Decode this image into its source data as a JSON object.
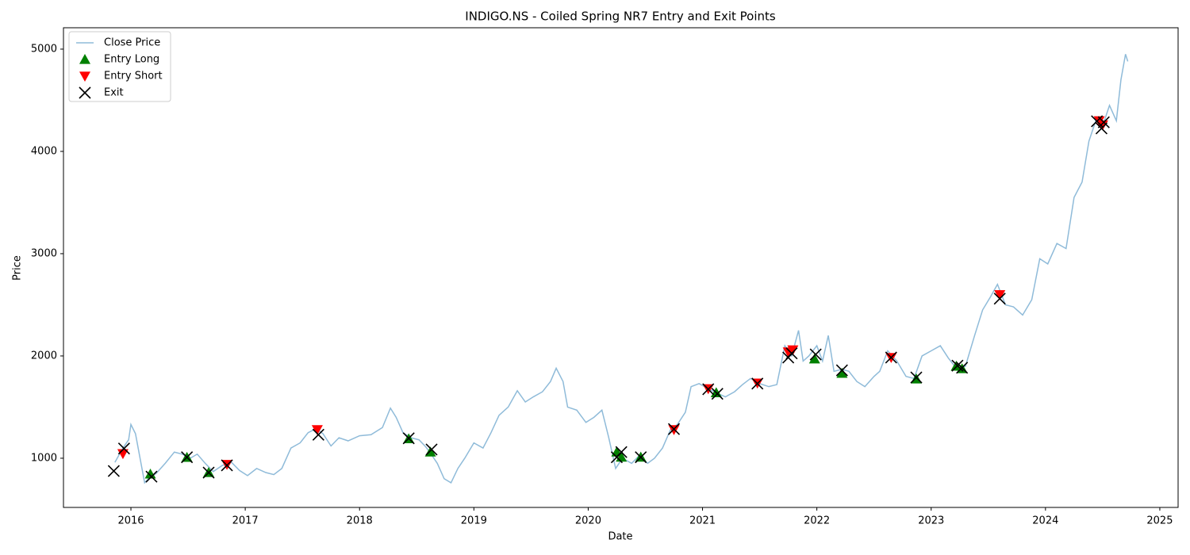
{
  "chart_data": {
    "type": "line",
    "title": "INDIGO.NS - Coiled Spring NR7 Entry and Exit Points",
    "x_label": "Date",
    "y_label": "Price",
    "xlim": [
      2015.41,
      2025.16
    ],
    "xticks": [
      2016,
      2017,
      2018,
      2019,
      2020,
      2021,
      2022,
      2023,
      2024,
      2025
    ],
    "ylim": [
      519,
      5209
    ],
    "yticks": [
      1000,
      2000,
      3000,
      4000,
      5000
    ],
    "legend": "upper left",
    "series": [
      {
        "name": "Close Price",
        "marker": "line",
        "color": "#1f77b4",
        "alpha": 0.5,
        "x": [
          2015.86,
          2015.93,
          2015.98,
          2016.0,
          2016.04,
          2016.08,
          2016.12,
          2016.17,
          2016.22,
          2016.3,
          2016.38,
          2016.45,
          2016.52,
          2016.58,
          2016.65,
          2016.72,
          2016.8,
          2016.88,
          2016.95,
          2017.02,
          2017.1,
          2017.18,
          2017.25,
          2017.32,
          2017.4,
          2017.48,
          2017.55,
          2017.62,
          2017.68,
          2017.75,
          2017.82,
          2017.9,
          2018.0,
          2018.1,
          2018.2,
          2018.27,
          2018.32,
          2018.38,
          2018.45,
          2018.52,
          2018.58,
          2018.62,
          2018.68,
          2018.74,
          2018.8,
          2018.86,
          2018.92,
          2019.0,
          2019.08,
          2019.15,
          2019.22,
          2019.3,
          2019.38,
          2019.45,
          2019.52,
          2019.6,
          2019.67,
          2019.72,
          2019.78,
          2019.82,
          2019.9,
          2019.98,
          2020.05,
          2020.12,
          2020.18,
          2020.24,
          2020.3,
          2020.38,
          2020.45,
          2020.52,
          2020.58,
          2020.65,
          2020.72,
          2020.78,
          2020.85,
          2020.9,
          2020.97,
          2021.05,
          2021.12,
          2021.2,
          2021.28,
          2021.35,
          2021.42,
          2021.5,
          2021.58,
          2021.65,
          2021.72,
          2021.78,
          2021.84,
          2021.88,
          2021.93,
          2022.0,
          2022.05,
          2022.1,
          2022.15,
          2022.22,
          2022.28,
          2022.35,
          2022.42,
          2022.5,
          2022.55,
          2022.62,
          2022.7,
          2022.78,
          2022.85,
          2022.92,
          2023.0,
          2023.08,
          2023.15,
          2023.22,
          2023.3,
          2023.38,
          2023.45,
          2023.52,
          2023.58,
          2023.65,
          2023.72,
          2023.8,
          2023.88,
          2023.95,
          2024.02,
          2024.1,
          2024.18,
          2024.25,
          2024.32,
          2024.38,
          2024.44,
          2024.5,
          2024.56,
          2024.62,
          2024.66,
          2024.7,
          2024.72
        ],
        "values": [
          960,
          1100,
          1180,
          1330,
          1240,
          1000,
          760,
          820,
          850,
          950,
          1060,
          1040,
          1000,
          1040,
          950,
          870,
          930,
          960,
          880,
          830,
          900,
          860,
          840,
          900,
          1100,
          1150,
          1250,
          1290,
          1240,
          1120,
          1200,
          1170,
          1220,
          1230,
          1300,
          1490,
          1400,
          1250,
          1200,
          1180,
          1110,
          1050,
          950,
          800,
          760,
          900,
          1000,
          1150,
          1100,
          1250,
          1420,
          1500,
          1660,
          1550,
          1600,
          1650,
          1750,
          1880,
          1750,
          1500,
          1470,
          1350,
          1400,
          1470,
          1200,
          900,
          1000,
          950,
          1030,
          950,
          1000,
          1100,
          1280,
          1330,
          1450,
          1700,
          1730,
          1680,
          1640,
          1600,
          1650,
          1720,
          1780,
          1730,
          1700,
          1720,
          2100,
          2000,
          2250,
          1950,
          2000,
          2100,
          1950,
          2200,
          1850,
          1870,
          1850,
          1750,
          1700,
          1800,
          1850,
          2050,
          1950,
          1800,
          1780,
          2000,
          2050,
          2100,
          1980,
          1880,
          1900,
          2200,
          2450,
          2580,
          2700,
          2500,
          2480,
          2400,
          2550,
          2950,
          2900,
          3100,
          3050,
          3550,
          3700,
          4100,
          4300,
          4250,
          4450,
          4300,
          4700,
          4950,
          4880
        ]
      },
      {
        "name": "Entry Long",
        "marker": "triangle-up",
        "color": "#008000",
        "x": [
          2016.17,
          2016.49,
          2016.68,
          2018.43,
          2018.62,
          2020.25,
          2020.29,
          2020.46,
          2021.12,
          2021.98,
          2022.22,
          2022.87,
          2023.22,
          2023.27
        ],
        "values": [
          845,
          1008,
          860,
          1190,
          1060,
          1060,
          1010,
          1010,
          1640,
          1970,
          1830,
          1775,
          1900,
          1875
        ]
      },
      {
        "name": "Entry Short",
        "marker": "triangle-down",
        "color": "#ff0000",
        "x": [
          2015.93,
          2016.84,
          2017.63,
          2020.75,
          2021.05,
          2021.48,
          2021.75,
          2021.79,
          2022.65,
          2023.6,
          2024.47,
          2024.5
        ],
        "values": [
          1045,
          940,
          1280,
          1280,
          1680,
          1735,
          2040,
          2060,
          1985,
          2600,
          4300,
          4260
        ]
      },
      {
        "name": "Exit",
        "marker": "x",
        "color": "#000000",
        "x": [
          2015.85,
          2015.94,
          2016.18,
          2016.49,
          2016.68,
          2016.84,
          2017.64,
          2018.43,
          2018.63,
          2020.25,
          2020.29,
          2020.46,
          2020.75,
          2021.05,
          2021.13,
          2021.48,
          2021.75,
          2021.78,
          2021.99,
          2022.22,
          2022.65,
          2022.87,
          2023.23,
          2023.27,
          2023.6,
          2024.45,
          2024.49,
          2024.51
        ],
        "values": [
          875,
          1095,
          820,
          1010,
          860,
          930,
          1230,
          1195,
          1085,
          1010,
          1060,
          1010,
          1285,
          1675,
          1630,
          1730,
          1985,
          2025,
          2015,
          1860,
          1985,
          1790,
          1905,
          1885,
          2560,
          4295,
          4225,
          4285
        ]
      }
    ]
  }
}
